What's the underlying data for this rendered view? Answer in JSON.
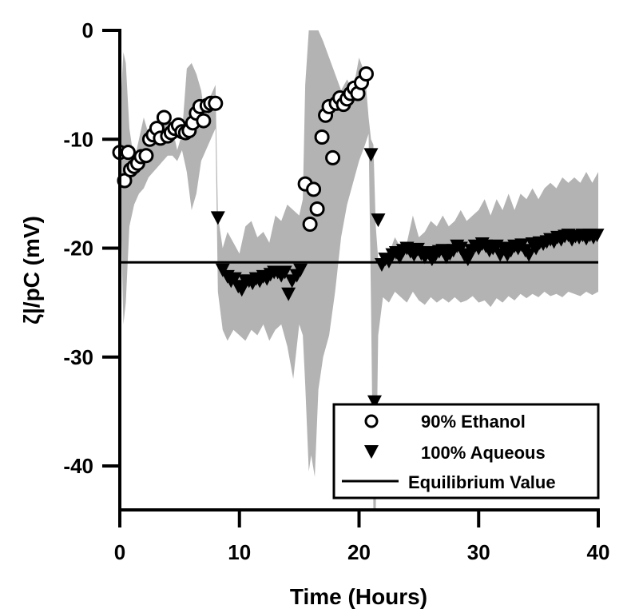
{
  "chart_data": {
    "type": "scatter",
    "title": "",
    "xlabel": "Time (Hours)",
    "ylabel": "ζ|/pC (mV)",
    "xlim": [
      0,
      40
    ],
    "ylim": [
      -44,
      0
    ],
    "xticks": [
      0,
      10,
      20,
      30,
      40
    ],
    "yticks": [
      0,
      -10,
      -20,
      -30,
      -40
    ],
    "xtick_labels": [
      "0",
      "10",
      "20",
      "30",
      "40"
    ],
    "ytick_labels": [
      "0",
      "-10",
      "-20",
      "-30",
      "-40"
    ],
    "grid": false,
    "legend_position": "bottom-right",
    "colors": {
      "band": "#b3b3b3",
      "marker_edge": "#000000",
      "ethanol_fill": "#ffffff",
      "aqueous_fill": "#000000",
      "line": "#000000"
    },
    "series": [
      {
        "name": "90% Ethanol",
        "marker": "circle-open",
        "x": [
          0.0,
          0.4,
          0.7,
          0.9,
          1.2,
          1.5,
          1.8,
          2.2,
          2.5,
          2.8,
          3.1,
          3.4,
          3.7,
          4.0,
          4.3,
          4.6,
          4.9,
          5.2,
          5.5,
          5.8,
          6.1,
          6.4,
          6.7,
          7.0,
          7.3,
          7.6,
          8.0,
          15.5,
          15.9,
          16.2,
          16.5,
          16.9,
          17.2,
          17.5,
          17.8,
          18.1,
          18.4,
          18.7,
          19.0,
          19.3,
          19.6,
          19.9,
          20.2,
          20.6
        ],
        "y": [
          -11.2,
          -13.8,
          -11.2,
          -12.8,
          -12.5,
          -12.2,
          -11.6,
          -11.5,
          -10.0,
          -9.6,
          -9.0,
          -9.9,
          -8.0,
          -9.7,
          -9.4,
          -9.0,
          -8.7,
          -9.3,
          -9.4,
          -9.2,
          -8.5,
          -7.6,
          -7.0,
          -8.3,
          -6.9,
          -6.7,
          -6.7,
          -14.1,
          -17.8,
          -14.6,
          -16.4,
          -9.8,
          -7.8,
          -7.0,
          -11.7,
          -6.7,
          -6.2,
          -6.8,
          -6.3,
          -5.8,
          -5.3,
          -5.8,
          -4.8,
          -4.0
        ]
      },
      {
        "name": "100% Aqueous",
        "marker": "triangle-down-filled",
        "x": [
          8.2,
          8.6,
          9.0,
          9.3,
          9.6,
          9.9,
          10.2,
          10.5,
          10.8,
          11.1,
          11.4,
          11.7,
          12.0,
          12.3,
          12.6,
          12.9,
          13.2,
          13.5,
          13.8,
          14.1,
          14.4,
          14.8,
          15.1,
          21.0,
          21.3,
          21.6,
          21.9,
          22.2,
          22.5,
          22.8,
          23.1,
          23.4,
          23.7,
          24.0,
          24.3,
          24.6,
          24.9,
          25.2,
          25.5,
          25.8,
          26.1,
          26.4,
          26.7,
          27.0,
          27.3,
          27.6,
          27.9,
          28.2,
          28.5,
          28.8,
          29.1,
          29.4,
          29.7,
          30.0,
          30.3,
          30.6,
          30.9,
          31.2,
          31.5,
          31.8,
          32.1,
          32.4,
          32.7,
          33.0,
          33.3,
          33.6,
          33.9,
          34.2,
          34.5,
          34.8,
          35.1,
          35.4,
          35.7,
          36.0,
          36.3,
          36.6,
          36.9,
          37.2,
          37.5,
          37.8,
          38.1,
          38.4,
          38.7,
          39.0,
          39.3,
          39.6,
          39.9
        ],
        "y": [
          -17.2,
          -22.0,
          -22.6,
          -23.0,
          -22.8,
          -23.5,
          -23.8,
          -23.0,
          -23.0,
          -23.2,
          -22.8,
          -23.0,
          -22.6,
          -22.8,
          -22.4,
          -22.2,
          -22.2,
          -22.5,
          -22.2,
          -24.2,
          -23.0,
          -22.5,
          -22.0,
          -11.4,
          -34.1,
          -17.4,
          -21.5,
          -21.0,
          -21.2,
          -20.6,
          -20.4,
          -20.8,
          -20.2,
          -20.0,
          -20.3,
          -20.6,
          -20.1,
          -20.5,
          -20.8,
          -20.4,
          -21.0,
          -20.6,
          -20.3,
          -20.2,
          -20.8,
          -20.5,
          -20.2,
          -19.8,
          -20.0,
          -20.6,
          -21.0,
          -20.2,
          -19.8,
          -20.0,
          -19.6,
          -19.8,
          -20.2,
          -20.0,
          -19.8,
          -20.6,
          -20.0,
          -20.6,
          -20.2,
          -19.8,
          -20.0,
          -19.7,
          -20.2,
          -20.6,
          -19.6,
          -20.0,
          -19.5,
          -19.6,
          -19.4,
          -19.2,
          -19.4,
          -19.0,
          -19.2,
          -18.9,
          -18.8,
          -19.2,
          -18.9,
          -19.0,
          -18.8,
          -19.1,
          -18.8,
          -19.0,
          -18.8
        ]
      },
      {
        "name": "Equilibrium Value",
        "type": "hline",
        "y": -21.3
      },
      {
        "name": "uncertainty band",
        "type": "area-range",
        "x": [
          0.0,
          0.3,
          0.5,
          0.8,
          1.2,
          1.6,
          2.0,
          2.4,
          2.8,
          3.2,
          3.6,
          4.0,
          4.4,
          4.8,
          5.2,
          5.6,
          6.0,
          6.4,
          6.8,
          7.2,
          7.6,
          8.0,
          8.2,
          8.6,
          9.0,
          9.5,
          10.0,
          10.5,
          11.0,
          11.5,
          12.0,
          12.5,
          13.0,
          13.5,
          14.0,
          14.5,
          15.0,
          15.3,
          15.5,
          15.8,
          16.0,
          16.3,
          16.6,
          17.0,
          17.5,
          18.0,
          18.5,
          19.0,
          19.5,
          20.0,
          20.5,
          20.8,
          21.0,
          21.2,
          21.4,
          21.6,
          22.0,
          22.5,
          23.0,
          23.5,
          24.0,
          24.5,
          25.0,
          25.5,
          26.0,
          26.5,
          27.0,
          27.5,
          28.0,
          28.5,
          29.0,
          29.5,
          30.0,
          30.5,
          31.0,
          31.5,
          32.0,
          32.5,
          33.0,
          33.5,
          34.0,
          34.5,
          35.0,
          35.5,
          36.0,
          36.5,
          37.0,
          37.5,
          38.0,
          38.5,
          39.0,
          39.5,
          40.0
        ],
        "upper": [
          -8.0,
          -2.0,
          -3.0,
          -9.0,
          -12.0,
          -10.0,
          -8.0,
          -9.5,
          -10.0,
          -9.0,
          -8.0,
          -7.5,
          -9.0,
          -11.0,
          -9.5,
          -3.5,
          -3.0,
          -4.0,
          -5.5,
          -8.5,
          -6.0,
          -5.0,
          -17.0,
          -20.0,
          -18.5,
          -19.5,
          -20.5,
          -18.0,
          -17.5,
          -19.0,
          -18.5,
          -19.5,
          -17.0,
          -17.5,
          -16.0,
          -16.5,
          -17.0,
          -15.5,
          -5.0,
          0.0,
          0.0,
          0.0,
          0.0,
          -1.0,
          -2.5,
          -4.0,
          -5.5,
          -4.5,
          -5.5,
          -2.5,
          -4.0,
          -8.0,
          -10.0,
          -10.5,
          -18.0,
          -21.0,
          -21.5,
          -20.5,
          -19.0,
          -20.0,
          -19.5,
          -17.0,
          -19.0,
          -18.5,
          -17.5,
          -18.0,
          -17.0,
          -18.0,
          -17.5,
          -16.5,
          -17.5,
          -17.0,
          -16.5,
          -15.5,
          -17.0,
          -15.5,
          -16.5,
          -15.0,
          -16.5,
          -15.0,
          -15.5,
          -14.5,
          -15.5,
          -14.5,
          -14.0,
          -14.5,
          -13.5,
          -14.0,
          -13.5,
          -14.0,
          -13.0,
          -14.0,
          -13.0
        ],
        "lower": [
          -13.0,
          -27.0,
          -25.0,
          -18.0,
          -16.0,
          -15.0,
          -14.5,
          -13.5,
          -13.0,
          -12.5,
          -12.0,
          -11.5,
          -11.5,
          -12.0,
          -11.0,
          -13.0,
          -16.5,
          -15.0,
          -12.0,
          -11.0,
          -10.0,
          -9.0,
          -24.0,
          -27.5,
          -28.5,
          -27.5,
          -28.0,
          -28.5,
          -27.5,
          -28.0,
          -27.0,
          -28.5,
          -27.5,
          -27.0,
          -29.0,
          -32.0,
          -27.0,
          -28.0,
          -32.5,
          -40.5,
          -39.0,
          -41.0,
          -33.0,
          -30.0,
          -28.0,
          -24.0,
          -19.0,
          -16.0,
          -14.0,
          -12.0,
          -10.5,
          -9.5,
          -25.0,
          -44.0,
          -44.0,
          -28.0,
          -24.5,
          -25.0,
          -24.0,
          -24.5,
          -25.0,
          -24.0,
          -24.8,
          -25.2,
          -24.5,
          -25.0,
          -24.6,
          -25.0,
          -24.5,
          -25.0,
          -24.8,
          -24.4,
          -25.0,
          -24.8,
          -25.4,
          -24.6,
          -25.0,
          -24.4,
          -24.8,
          -24.2,
          -24.6,
          -24.2,
          -24.5,
          -24.0,
          -24.4,
          -24.2,
          -24.5,
          -24.0,
          -24.2,
          -24.4,
          -24.0,
          -24.3,
          -24.0
        ]
      }
    ]
  }
}
